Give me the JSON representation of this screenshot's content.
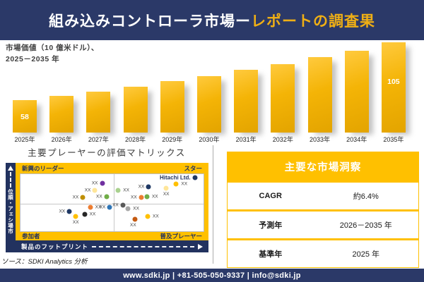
{
  "header": {
    "title_white": "組み込みコントローラ市場ー",
    "title_gold": "レポートの調査果"
  },
  "chart_label": {
    "line1": "市場価値（10 億米ドル）、",
    "line2": "2025－2035 年"
  },
  "chart_data": [
    {
      "type": "bar",
      "title": "市場価値（10億米ドル）、2025－2035年",
      "categories": [
        "2025年",
        "2026年",
        "2027年",
        "2028年",
        "2029年",
        "2030年",
        "2031年",
        "2032年",
        "2033年",
        "2034年",
        "2035年"
      ],
      "values": [
        58,
        61.5,
        65.2,
        69.2,
        73.4,
        77.8,
        82.5,
        87.5,
        92.8,
        98.4,
        105
      ],
      "data_labels": {
        "first": "58",
        "last": "105"
      },
      "values_note": "only first (58) and last (105) bars are labeled; intermediate values estimated from bar heights",
      "ylim": [
        0,
        110
      ],
      "grid": false,
      "legend": "none"
    },
    {
      "type": "scatter",
      "title": "主要プレーヤーの評価マトリックス",
      "xlabel": "製品のフットプリント",
      "ylabel": "市場シェア・順位",
      "y_origin": "top",
      "quadrant_labels": {
        "top_left": "新興のリーダー",
        "top_right": "スター",
        "bottom_left": "参加者",
        "bottom_right": "普及プレーヤー"
      },
      "points": [
        {
          "x": 44.6,
          "y": 16,
          "color": "#7030A0",
          "label": "XX",
          "label_side": "left"
        },
        {
          "x": 40.7,
          "y": 29,
          "color": "#FFE699",
          "label": "XX",
          "label_side": "left"
        },
        {
          "x": 34.1,
          "y": 40.5,
          "color": "#BF8F00",
          "label": "XX",
          "label_side": "left"
        },
        {
          "x": 47.0,
          "y": 39.5,
          "color": "#70AD47",
          "label": "XX",
          "label_side": "left"
        },
        {
          "x": 53.4,
          "y": 28.5,
          "color": "#A9D18E",
          "label": "XX",
          "label_side": "right"
        },
        {
          "x": 70.0,
          "y": 22,
          "color": "#1F3864",
          "label": "XX",
          "label_side": "left"
        },
        {
          "x": 79.6,
          "y": 24.5,
          "color": "#FFE699",
          "label": "XX",
          "label_side": "below"
        },
        {
          "x": 85.1,
          "y": 17,
          "color": "#FFC000",
          "label": "XX",
          "label_side": "right"
        },
        {
          "x": 95.2,
          "y": 6.5,
          "color": "#1F3864",
          "label": "Hitachi Ltd.",
          "label_side": "left",
          "bold": true
        },
        {
          "x": 65.9,
          "y": 40.5,
          "color": "#ED7D31",
          "label": "XX",
          "label_side": "left"
        },
        {
          "x": 69.1,
          "y": 39.5,
          "color": "#70AD47",
          "label": "XX",
          "label_side": "right"
        },
        {
          "x": 26.7,
          "y": 65.5,
          "color": "#1F3864",
          "label": "XX",
          "label_side": "left"
        },
        {
          "x": 30.2,
          "y": 73.5,
          "color": "#FFC000",
          "label": "XX",
          "label_side": "below"
        },
        {
          "x": 35.0,
          "y": 70.5,
          "color": "#262626",
          "label": "XX",
          "label_side": "right"
        },
        {
          "x": 38.1,
          "y": 58.5,
          "color": "#ED7D31",
          "label": "XX",
          "label_side": "right"
        },
        {
          "x": 48.8,
          "y": 57.5,
          "color": "#2E75B6",
          "label": "XX",
          "label_side": "left"
        },
        {
          "x": 55.9,
          "y": 54,
          "color": "#595959",
          "label": "XX",
          "label_side": "left"
        },
        {
          "x": 58.8,
          "y": 61,
          "color": "#A6A6A6",
          "label": "XX",
          "label_side": "right"
        },
        {
          "x": 62.7,
          "y": 78.5,
          "color": "#C55A11",
          "label": "XX",
          "label_side": "below-left"
        },
        {
          "x": 69.5,
          "y": 74.5,
          "color": "#FFC000",
          "label": "XX",
          "label_side": "right"
        }
      ]
    }
  ],
  "insights": {
    "title": "主要な市場洞察",
    "rows": [
      {
        "label": "CAGR",
        "value": "約6.4%"
      },
      {
        "label": "予測年",
        "value": "2026－2035 年"
      },
      {
        "label": "基準年",
        "value": "2025 年"
      }
    ]
  },
  "source": "ソース：SDKI Analytics 分析",
  "footer": "www.sdki.jp | +81-505-050-9337 | info@sdki.jp",
  "colors": {
    "navy": "#2B3968",
    "navy_dark": "#22325F",
    "gold": "#FFC000",
    "title_gold": "#EFAF15",
    "bar_light": "#FFCA3E",
    "bar_dark": "#E3A400"
  }
}
